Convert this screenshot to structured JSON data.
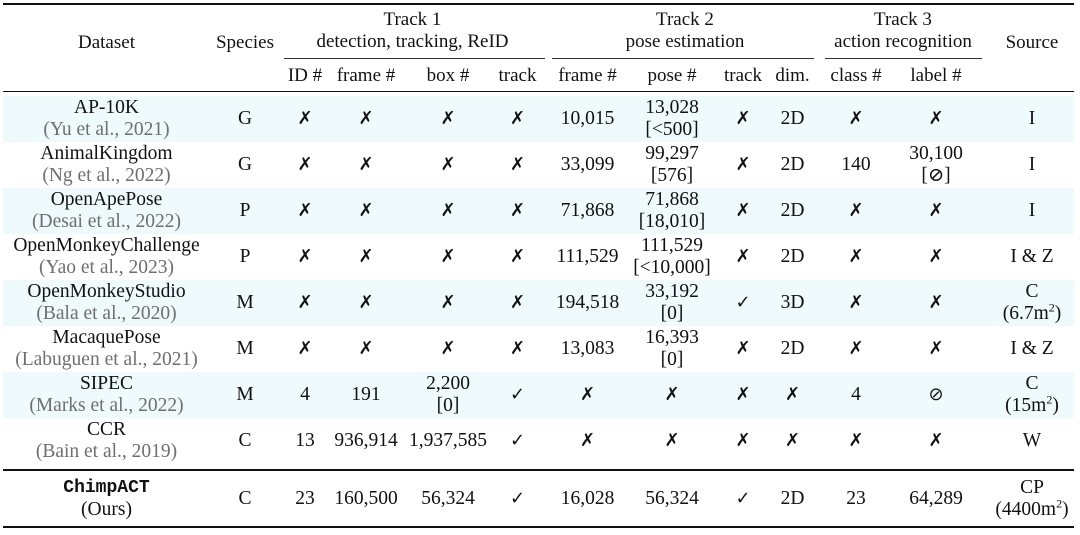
{
  "header": {
    "dataset": "Dataset",
    "species": "Species",
    "source": "Source",
    "track1": {
      "title": "Track 1",
      "subtitle": "detection, tracking, ReID"
    },
    "track2": {
      "title": "Track 2",
      "subtitle": "pose estimation"
    },
    "track3": {
      "title": "Track 3",
      "subtitle": "action recognition"
    },
    "subcols": [
      "ID #",
      "frame #",
      "box #",
      "track",
      "frame #",
      "pose #",
      "track",
      "dim.",
      "class #",
      "label #"
    ]
  },
  "rows": [
    {
      "name": "AP-10K",
      "cite": "(Yu et al., 2021)",
      "species": "G",
      "cells": [
        "✗",
        "✗",
        "✗",
        "✗",
        "10,015",
        [
          "13,028",
          "[<500]"
        ],
        "✗",
        "2D",
        "✗",
        "✗"
      ],
      "source": [
        "I"
      ],
      "shaded": true
    },
    {
      "name": "AnimalKingdom",
      "cite": "(Ng et al., 2022)",
      "species": "G",
      "cells": [
        "✗",
        "✗",
        "✗",
        "✗",
        "33,099",
        [
          "99,297",
          "[576]"
        ],
        "✗",
        "2D",
        "140",
        [
          "30,100",
          "[⊘]"
        ]
      ],
      "source": [
        "I"
      ],
      "shaded": false
    },
    {
      "name": "OpenApePose",
      "cite": "(Desai et al., 2022)",
      "species": "P",
      "cells": [
        "✗",
        "✗",
        "✗",
        "✗",
        "71,868",
        [
          "71,868",
          "[18,010]"
        ],
        "✗",
        "2D",
        "✗",
        "✗"
      ],
      "source": [
        "I"
      ],
      "shaded": true
    },
    {
      "name": "OpenMonkeyChallenge",
      "cite": "(Yao et al., 2023)",
      "species": "P",
      "cells": [
        "✗",
        "✗",
        "✗",
        "✗",
        "111,529",
        [
          "111,529",
          "[<10,000]"
        ],
        "✗",
        "2D",
        "✗",
        "✗"
      ],
      "source": [
        "I & Z"
      ],
      "shaded": false
    },
    {
      "name": "OpenMonkeyStudio",
      "cite": "(Bala et al., 2020)",
      "species": "M",
      "cells": [
        "✗",
        "✗",
        "✗",
        "✗",
        "194,518",
        [
          "33,192",
          "[0]"
        ],
        "✓",
        "3D",
        "✗",
        "✗"
      ],
      "source": [
        "C",
        "(6.7m²)"
      ],
      "shaded": true
    },
    {
      "name": "MacaquePose",
      "cite": "(Labuguen et al., 2021)",
      "species": "M",
      "cells": [
        "✗",
        "✗",
        "✗",
        "✗",
        "13,083",
        [
          "16,393",
          "[0]"
        ],
        "✗",
        "2D",
        "✗",
        "✗"
      ],
      "source": [
        "I & Z"
      ],
      "shaded": false
    },
    {
      "name": "SIPEC",
      "cite": "(Marks et al., 2022)",
      "species": "M",
      "cells": [
        "4",
        "191",
        [
          "2,200",
          "[0]"
        ],
        "✓",
        "✗",
        "✗",
        "✗",
        "✗",
        "4",
        "⊘"
      ],
      "source": [
        "C",
        "(15m²)"
      ],
      "shaded": true
    },
    {
      "name": "CCR",
      "cite": "(Bain et al., 2019)",
      "species": "C",
      "cells": [
        "13",
        "936,914",
        "1,937,585",
        "✓",
        "✗",
        "✗",
        "✗",
        "✗",
        "✗",
        "✗"
      ],
      "source": [
        "W"
      ],
      "shaded": false
    }
  ],
  "ours": {
    "name": "ChimpACT",
    "cite": "(Ours)",
    "species": "C",
    "cells": [
      "23",
      "160,500",
      "56,324",
      "✓",
      "16,028",
      "56,324",
      "✓",
      "2D",
      "23",
      "64,289"
    ],
    "source": [
      "CP",
      "(4400m²)"
    ]
  }
}
